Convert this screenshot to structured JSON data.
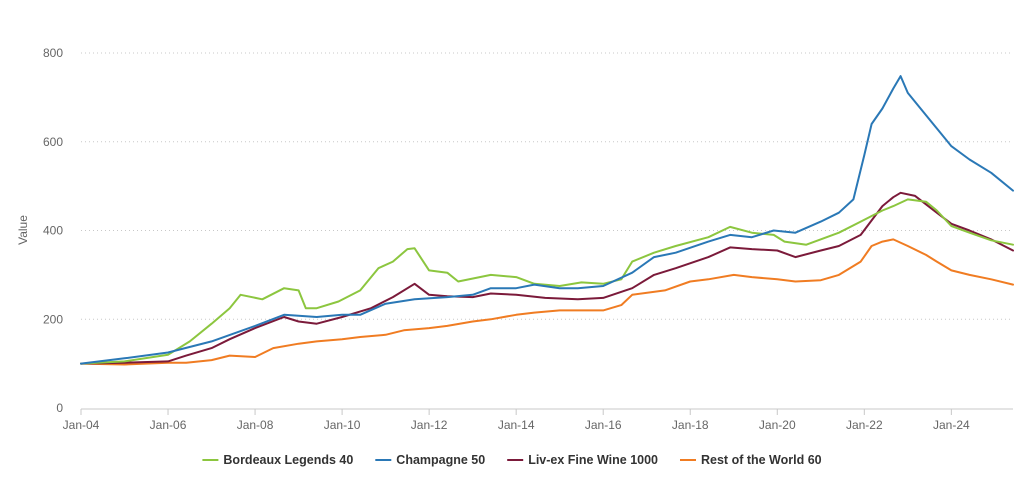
{
  "chart_data": {
    "type": "line",
    "ylabel": "Value",
    "ylim": [
      0,
      800
    ],
    "yticks": [
      0,
      200,
      400,
      600,
      800
    ],
    "xlim": [
      "2004-01",
      "2025-06"
    ],
    "xticks": [
      {
        "date": "2004-01",
        "label": "Jan-04"
      },
      {
        "date": "2006-01",
        "label": "Jan-06"
      },
      {
        "date": "2008-01",
        "label": "Jan-08"
      },
      {
        "date": "2010-01",
        "label": "Jan-10"
      },
      {
        "date": "2012-01",
        "label": "Jan-12"
      },
      {
        "date": "2014-01",
        "label": "Jan-14"
      },
      {
        "date": "2016-01",
        "label": "Jan-16"
      },
      {
        "date": "2018-01",
        "label": "Jan-18"
      },
      {
        "date": "2020-01",
        "label": "Jan-20"
      },
      {
        "date": "2022-01",
        "label": "Jan-22"
      },
      {
        "date": "2024-01",
        "label": "Jan-24"
      }
    ],
    "grid": "horizontal dotted",
    "legend_position": "bottom",
    "series": [
      {
        "name": "Bordeaux Legends 40",
        "color": "#8cc63f",
        "points": [
          [
            "2004-01",
            100
          ],
          [
            "2005-01",
            105
          ],
          [
            "2006-01",
            120
          ],
          [
            "2006-07",
            150
          ],
          [
            "2007-01",
            190
          ],
          [
            "2007-06",
            225
          ],
          [
            "2007-09",
            255
          ],
          [
            "2008-03",
            245
          ],
          [
            "2008-09",
            270
          ],
          [
            "2009-01",
            265
          ],
          [
            "2009-03",
            225
          ],
          [
            "2009-06",
            225
          ],
          [
            "2009-12",
            240
          ],
          [
            "2010-06",
            265
          ],
          [
            "2010-11",
            315
          ],
          [
            "2011-03",
            330
          ],
          [
            "2011-07",
            358
          ],
          [
            "2011-09",
            360
          ],
          [
            "2012-01",
            310
          ],
          [
            "2012-06",
            305
          ],
          [
            "2012-09",
            285
          ],
          [
            "2013-06",
            300
          ],
          [
            "2014-01",
            295
          ],
          [
            "2014-06",
            280
          ],
          [
            "2015-01",
            275
          ],
          [
            "2015-07",
            283
          ],
          [
            "2016-01",
            280
          ],
          [
            "2016-06",
            290
          ],
          [
            "2016-09",
            330
          ],
          [
            "2017-03",
            350
          ],
          [
            "2017-09",
            365
          ],
          [
            "2018-06",
            385
          ],
          [
            "2018-12",
            408
          ],
          [
            "2019-06",
            395
          ],
          [
            "2019-12",
            390
          ],
          [
            "2020-03",
            375
          ],
          [
            "2020-09",
            368
          ],
          [
            "2021-06",
            395
          ],
          [
            "2021-12",
            420
          ],
          [
            "2022-06",
            445
          ],
          [
            "2022-09",
            455
          ],
          [
            "2023-01",
            470
          ],
          [
            "2023-06",
            465
          ],
          [
            "2023-09",
            445
          ],
          [
            "2024-01",
            410
          ],
          [
            "2024-06",
            395
          ],
          [
            "2024-12",
            378
          ],
          [
            "2025-06",
            368
          ]
        ]
      },
      {
        "name": "Champagne 50",
        "color": "#2a78b6",
        "points": [
          [
            "2004-01",
            100
          ],
          [
            "2005-01",
            112
          ],
          [
            "2006-01",
            125
          ],
          [
            "2007-01",
            150
          ],
          [
            "2008-01",
            185
          ],
          [
            "2008-09",
            210
          ],
          [
            "2009-06",
            205
          ],
          [
            "2010-01",
            210
          ],
          [
            "2010-06",
            210
          ],
          [
            "2011-01",
            235
          ],
          [
            "2011-09",
            245
          ],
          [
            "2012-06",
            250
          ],
          [
            "2013-01",
            255
          ],
          [
            "2013-06",
            270
          ],
          [
            "2014-01",
            270
          ],
          [
            "2014-06",
            278
          ],
          [
            "2015-01",
            270
          ],
          [
            "2015-06",
            270
          ],
          [
            "2016-01",
            275
          ],
          [
            "2016-09",
            305
          ],
          [
            "2017-03",
            340
          ],
          [
            "2017-09",
            350
          ],
          [
            "2018-06",
            375
          ],
          [
            "2018-12",
            390
          ],
          [
            "2019-06",
            385
          ],
          [
            "2019-12",
            400
          ],
          [
            "2020-06",
            395
          ],
          [
            "2021-01",
            420
          ],
          [
            "2021-06",
            440
          ],
          [
            "2021-10",
            470
          ],
          [
            "2022-01",
            570
          ],
          [
            "2022-03",
            640
          ],
          [
            "2022-06",
            675
          ],
          [
            "2022-09",
            720
          ],
          [
            "2022-11",
            748
          ],
          [
            "2023-01",
            710
          ],
          [
            "2023-04",
            680
          ],
          [
            "2023-09",
            630
          ],
          [
            "2024-01",
            590
          ],
          [
            "2024-06",
            560
          ],
          [
            "2024-12",
            530
          ],
          [
            "2025-06",
            490
          ]
        ]
      },
      {
        "name": "Liv-ex Fine Wine 1000",
        "color": "#7b1a3a",
        "points": [
          [
            "2004-01",
            100
          ],
          [
            "2005-01",
            102
          ],
          [
            "2006-01",
            105
          ],
          [
            "2006-06",
            118
          ],
          [
            "2007-01",
            135
          ],
          [
            "2007-06",
            155
          ],
          [
            "2008-01",
            180
          ],
          [
            "2008-09",
            205
          ],
          [
            "2009-01",
            195
          ],
          [
            "2009-06",
            190
          ],
          [
            "2010-01",
            205
          ],
          [
            "2010-09",
            225
          ],
          [
            "2011-03",
            250
          ],
          [
            "2011-09",
            280
          ],
          [
            "2012-01",
            255
          ],
          [
            "2012-06",
            252
          ],
          [
            "2013-01",
            250
          ],
          [
            "2013-06",
            258
          ],
          [
            "2014-01",
            255
          ],
          [
            "2014-09",
            248
          ],
          [
            "2015-06",
            245
          ],
          [
            "2016-01",
            248
          ],
          [
            "2016-09",
            270
          ],
          [
            "2017-03",
            300
          ],
          [
            "2017-09",
            315
          ],
          [
            "2018-06",
            340
          ],
          [
            "2018-12",
            362
          ],
          [
            "2019-06",
            358
          ],
          [
            "2020-01",
            355
          ],
          [
            "2020-06",
            340
          ],
          [
            "2021-01",
            355
          ],
          [
            "2021-06",
            365
          ],
          [
            "2021-12",
            390
          ],
          [
            "2022-06",
            455
          ],
          [
            "2022-09",
            475
          ],
          [
            "2022-11",
            485
          ],
          [
            "2023-03",
            478
          ],
          [
            "2023-09",
            440
          ],
          [
            "2024-01",
            415
          ],
          [
            "2024-06",
            400
          ],
          [
            "2024-12",
            380
          ],
          [
            "2025-06",
            355
          ]
        ]
      },
      {
        "name": "Rest of the World 60",
        "color": "#f07c22",
        "points": [
          [
            "2004-01",
            100
          ],
          [
            "2005-01",
            98
          ],
          [
            "2006-01",
            102
          ],
          [
            "2006-06",
            102
          ],
          [
            "2007-01",
            108
          ],
          [
            "2007-06",
            118
          ],
          [
            "2008-01",
            115
          ],
          [
            "2008-06",
            135
          ],
          [
            "2009-01",
            145
          ],
          [
            "2009-06",
            150
          ],
          [
            "2010-01",
            155
          ],
          [
            "2010-06",
            160
          ],
          [
            "2011-01",
            165
          ],
          [
            "2011-06",
            175
          ],
          [
            "2012-01",
            180
          ],
          [
            "2012-06",
            185
          ],
          [
            "2013-01",
            195
          ],
          [
            "2013-06",
            200
          ],
          [
            "2014-01",
            210
          ],
          [
            "2014-06",
            215
          ],
          [
            "2015-01",
            220
          ],
          [
            "2015-06",
            220
          ],
          [
            "2016-01",
            220
          ],
          [
            "2016-06",
            232
          ],
          [
            "2016-09",
            255
          ],
          [
            "2017-06",
            265
          ],
          [
            "2018-01",
            285
          ],
          [
            "2018-06",
            290
          ],
          [
            "2019-01",
            300
          ],
          [
            "2019-06",
            295
          ],
          [
            "2020-01",
            290
          ],
          [
            "2020-06",
            285
          ],
          [
            "2021-01",
            288
          ],
          [
            "2021-06",
            300
          ],
          [
            "2021-12",
            330
          ],
          [
            "2022-03",
            365
          ],
          [
            "2022-06",
            375
          ],
          [
            "2022-09",
            380
          ],
          [
            "2023-01",
            365
          ],
          [
            "2023-06",
            345
          ],
          [
            "2023-09",
            330
          ],
          [
            "2024-01",
            310
          ],
          [
            "2024-06",
            300
          ],
          [
            "2024-12",
            290
          ],
          [
            "2025-06",
            278
          ]
        ]
      }
    ]
  }
}
